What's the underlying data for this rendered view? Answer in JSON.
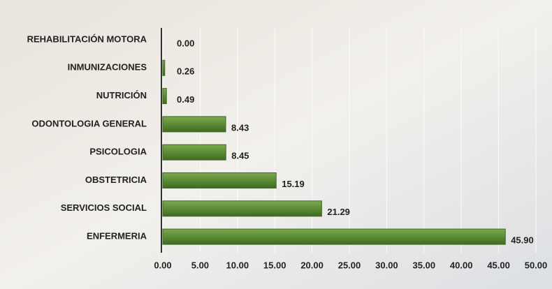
{
  "chart_data": {
    "type": "bar",
    "orientation": "horizontal",
    "categories": [
      "REHABILITACIÓN MOTORA",
      "INMUNIZACIONES",
      "NUTRICIÓN",
      "ODONTOLOGIA GENERAL",
      "PSICOLOGIA",
      "OBSTETRICIA",
      "SERVICIOS SOCIAL",
      "ENFERMERIA"
    ],
    "values": [
      0,
      0.26,
      0.49,
      8.43,
      8.45,
      15.19,
      21.29,
      45.9
    ],
    "value_labels": [
      "0.00",
      "0.26",
      "0.49",
      "8.43",
      "8.45",
      "15.19",
      "21.29",
      "45.90"
    ],
    "color": "#5b8c36",
    "xlim": [
      0,
      50
    ],
    "xticks": [
      {
        "value": 0,
        "label": "0.00"
      },
      {
        "value": 5,
        "label": "5.00"
      },
      {
        "value": 10,
        "label": "10.00"
      },
      {
        "value": 15,
        "label": "15.00"
      },
      {
        "value": 20,
        "label": "20.00"
      },
      {
        "value": 25,
        "label": "25.00"
      },
      {
        "value": 30,
        "label": "30.00"
      },
      {
        "value": 35,
        "label": "35.00"
      },
      {
        "value": 40,
        "label": "40.00"
      },
      {
        "value": 45,
        "label": "45.00"
      },
      {
        "value": 50,
        "label": "50.00"
      }
    ],
    "grid": true
  }
}
